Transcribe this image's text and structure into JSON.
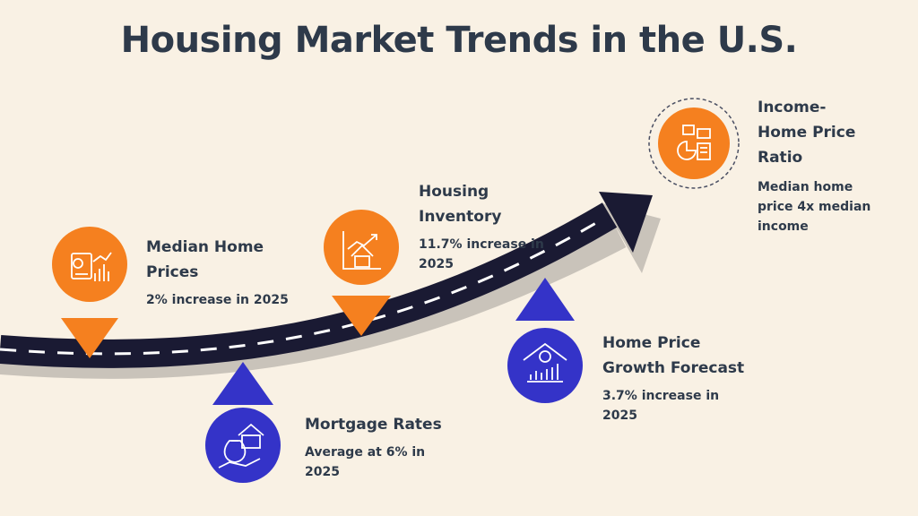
{
  "title": "Housing Market Trends in the U.S.",
  "colors": {
    "background": "#f9f1e4",
    "text": "#2e3a4a",
    "orange": "#f5801f",
    "blue": "#3433c8",
    "road": "#1a1a33",
    "road_shadow": "#c9c3ba"
  },
  "items": [
    {
      "title_lines": [
        "Median Home",
        "Prices"
      ],
      "desc_lines": [
        "2% increase in 2025"
      ],
      "icon": "money-chart-icon",
      "color": "orange"
    },
    {
      "title_lines": [
        "Mortgage Rates"
      ],
      "desc_lines": [
        "Average at 6% in",
        "2025"
      ],
      "icon": "house-money-bag-icon",
      "color": "blue"
    },
    {
      "title_lines": [
        "Housing",
        "Inventory"
      ],
      "desc_lines": [
        "11.7% increase in",
        "2025"
      ],
      "icon": "house-growth-chart-icon",
      "color": "orange"
    },
    {
      "title_lines": [
        "Home Price",
        "Growth Forecast"
      ],
      "desc_lines": [
        "3.7% increase in",
        "2025"
      ],
      "icon": "house-dollar-bars-icon",
      "color": "blue"
    },
    {
      "title_lines": [
        "Income-",
        "Home Price",
        "Ratio"
      ],
      "desc_lines": [
        "Median home",
        "price 4x median",
        "income"
      ],
      "icon": "report-pie-chart-icon",
      "color": "orange"
    }
  ]
}
